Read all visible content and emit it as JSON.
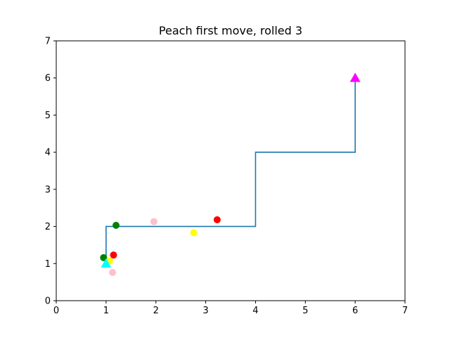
{
  "chart_data": {
    "type": "line",
    "title": "Peach first move, rolled 3",
    "xlabel": "",
    "ylabel": "",
    "xlim": [
      0,
      7
    ],
    "ylim": [
      0,
      7
    ],
    "xticks": [
      0,
      1,
      2,
      3,
      4,
      5,
      6,
      7
    ],
    "yticks": [
      0,
      1,
      2,
      3,
      4,
      5,
      6,
      7
    ],
    "grid": false,
    "path": {
      "color": "#1f77b4",
      "points": [
        [
          1,
          1
        ],
        [
          1,
          2
        ],
        [
          4,
          2
        ],
        [
          4,
          4
        ],
        [
          6,
          4
        ],
        [
          6,
          6
        ]
      ]
    },
    "markers": [
      {
        "shape": "triangle",
        "color": "#00ffff",
        "x": 1.0,
        "y": 1.0
      },
      {
        "shape": "triangle",
        "color": "#ff00ff",
        "x": 6.0,
        "y": 6.0
      }
    ],
    "points": [
      {
        "color": "#008000",
        "x": 0.95,
        "y": 1.16
      },
      {
        "color": "#008000",
        "x": 1.2,
        "y": 2.03
      },
      {
        "color": "#ff0000",
        "x": 1.15,
        "y": 1.23
      },
      {
        "color": "#ff0000",
        "x": 3.23,
        "y": 2.18
      },
      {
        "color": "#ffff00",
        "x": 1.07,
        "y": 1.07
      },
      {
        "color": "#ffff00",
        "x": 2.76,
        "y": 1.83
      },
      {
        "color": "#ffc0cb",
        "x": 1.13,
        "y": 0.76
      },
      {
        "color": "#ffc0cb",
        "x": 1.96,
        "y": 2.13
      }
    ]
  }
}
